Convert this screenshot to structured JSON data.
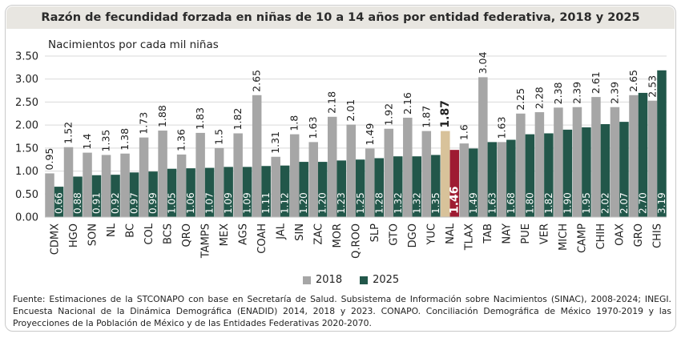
{
  "chart_data": {
    "type": "bar",
    "title": "Razón de fecundidad forzada en niñas de 10 a 14 años por entidad federativa, 2018 y 2025",
    "ylabel": "Nacimientos por cada mil niñas",
    "ylim": [
      0,
      3.5
    ],
    "yticks": [
      "0.00",
      "0.50",
      "1.00",
      "1.50",
      "2.00",
      "2.50",
      "3.00",
      "3.50"
    ],
    "categories": [
      "CDMX",
      "HGO",
      "SON",
      "NL",
      "BC",
      "COL",
      "BCS",
      "QRO",
      "TAMPS",
      "MEX",
      "AGS",
      "COAH",
      "JAL",
      "SIN",
      "ZAC",
      "MOR",
      "Q.ROO",
      "SLP",
      "GTO",
      "DGO",
      "YUC",
      "NAL",
      "TLAX",
      "TAB",
      "NAY",
      "PUE",
      "VER",
      "MICH",
      "CAMP",
      "CHIH",
      "OAX",
      "GRO",
      "CHIS"
    ],
    "series": [
      {
        "name": "2018",
        "color": "#a6a6a6",
        "values": [
          0.95,
          1.52,
          1.4,
          1.35,
          1.38,
          1.73,
          1.88,
          1.36,
          1.83,
          1.5,
          1.82,
          2.65,
          1.31,
          1.8,
          1.63,
          2.18,
          2.01,
          1.49,
          1.92,
          2.16,
          1.87,
          1.87,
          1.6,
          3.04,
          1.63,
          2.25,
          2.28,
          2.38,
          2.39,
          2.61,
          2.39,
          2.65,
          2.53
        ],
        "labels": [
          "0.95",
          "1.52",
          "1.4",
          "1.35",
          "1.38",
          "1.73",
          "1.88",
          "1.36",
          "1.83",
          "1.5",
          "1.82",
          "2.65",
          "1.31",
          "1.8",
          "1.63",
          "2.18",
          "2.01",
          "1.49",
          "1.92",
          "2.16",
          "1.87",
          "1.87",
          "1.6",
          "3.04",
          "1.63",
          "2.25",
          "2.28",
          "2.38",
          "2.39",
          "2.61",
          "2.39",
          "2.65",
          "2.53"
        ]
      },
      {
        "name": "2025",
        "color": "#22574a",
        "values": [
          0.66,
          0.88,
          0.91,
          0.92,
          0.97,
          0.99,
          1.05,
          1.06,
          1.07,
          1.09,
          1.09,
          1.11,
          1.12,
          1.2,
          1.2,
          1.23,
          1.25,
          1.28,
          1.32,
          1.32,
          1.35,
          1.46,
          1.49,
          1.63,
          1.68,
          1.8,
          1.82,
          1.9,
          1.95,
          2.02,
          2.07,
          2.7,
          3.19
        ],
        "labels": [
          "0.66",
          "0.88",
          "0.91",
          "0.92",
          "0.97",
          "0.99",
          "1.05",
          "1.06",
          "1.07",
          "1.09",
          "1.09",
          "1.11",
          "1.12",
          "1.20",
          "1.20",
          "1.23",
          "1.25",
          "1.28",
          "1.32",
          "1.32",
          "1.35",
          "1.46",
          "1.49",
          "1.63",
          "1.68",
          "1.80",
          "1.82",
          "1.90",
          "1.95",
          "2.02",
          "2.07",
          "2.70",
          "3.19"
        ]
      }
    ],
    "highlight": {
      "category": "NAL",
      "color_2018": "#d8c29a",
      "color_2025": "#9e1b32"
    },
    "grid": true,
    "legend_position": "bottom"
  },
  "legend": [
    {
      "label": "2018",
      "color": "#a6a6a6"
    },
    {
      "label": "2025",
      "color": "#22574a"
    }
  ],
  "source": "Fuente: Estimaciones de la STCONAPO con base en Secretaría de Salud. Subsistema de Información sobre Nacimientos (SINAC), 2008-2024; INEGI. Encuesta Nacional de la Dinámica Demográfica (ENADID) 2014, 2018 y 2023. CONAPO. Conciliación Demográfica de México 1970-2019 y las Proyecciones de la Población de México y de las Entidades Federativas 2020-2070."
}
